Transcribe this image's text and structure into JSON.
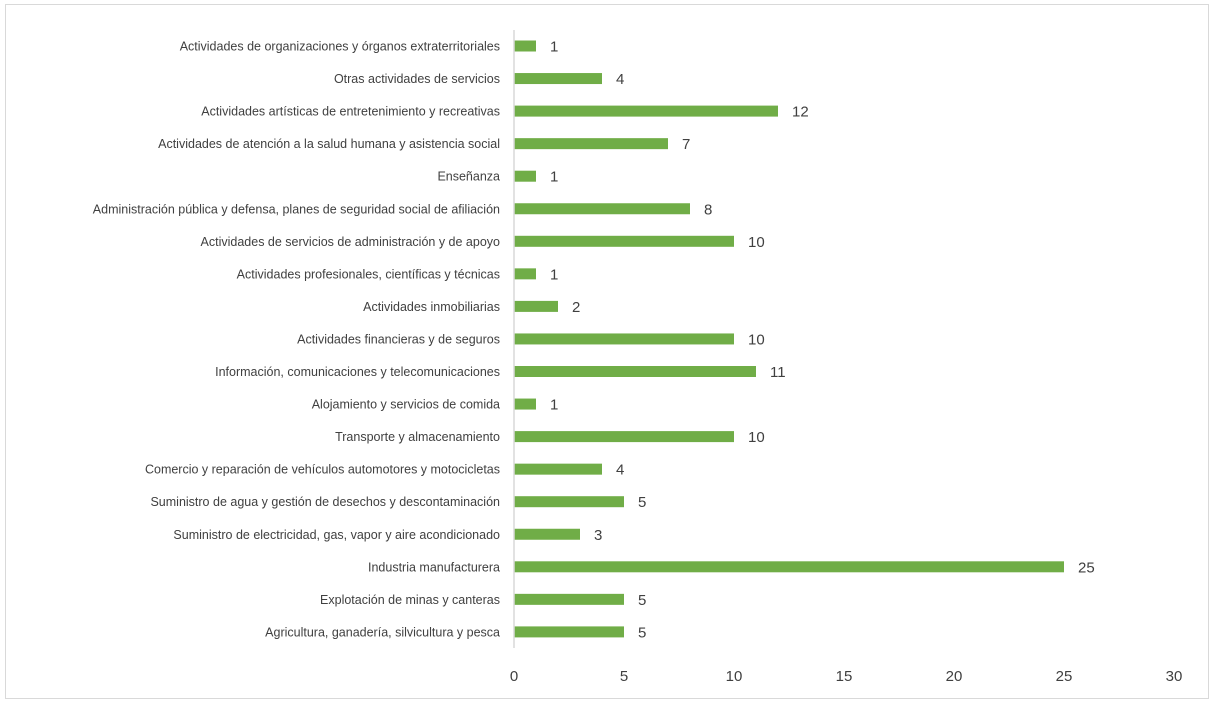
{
  "chart_data": {
    "type": "bar",
    "orientation": "horizontal",
    "title": "",
    "xlabel": "",
    "ylabel": "",
    "xlim": [
      0,
      30
    ],
    "x_ticks": [
      0,
      5,
      10,
      15,
      20,
      25,
      30
    ],
    "grid": false,
    "legend": "none",
    "bar_color": "#70AD47",
    "categories": [
      "Actividades de organizaciones y órganos extraterritoriales",
      "Otras actividades de servicios",
      "Actividades artísticas de entretenimiento y recreativas",
      "Actividades de atención a la salud humana y asistencia social",
      "Enseñanza",
      "Administración pública y defensa, planes de seguridad social de afiliación",
      "Actividades de servicios de administración y de apoyo",
      "Actividades profesionales, científicas y técnicas",
      "Actividades inmobiliarias",
      "Actividades financieras y de seguros",
      "Información, comunicaciones y telecomunicaciones",
      "Alojamiento y servicios de comida",
      "Transporte y almacenamiento",
      "Comercio y reparación de vehículos automotores y motocicletas",
      "Suministro de agua y gestión de desechos y descontaminación",
      "Suministro de electricidad, gas, vapor y aire acondicionado",
      "Industria manufacturera",
      "Explotación de minas y canteras",
      "Agricultura, ganadería, silvicultura y pesca"
    ],
    "values": [
      1,
      4,
      12,
      7,
      1,
      8,
      10,
      1,
      2,
      10,
      11,
      1,
      10,
      4,
      5,
      3,
      25,
      5,
      5
    ]
  }
}
